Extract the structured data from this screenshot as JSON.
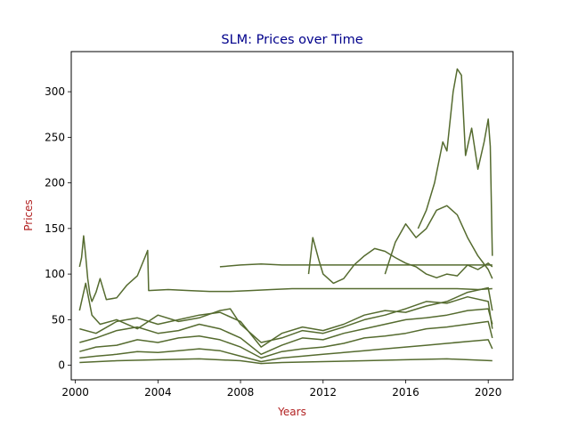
{
  "chart_data": {
    "type": "line",
    "title": "SLM: Prices over Time",
    "xlabel": "Years",
    "ylabel": "Prices",
    "xlim": [
      1999.8,
      2021.2
    ],
    "ylim": [
      -16,
      344
    ],
    "x_ticks": [
      "2000",
      "2004",
      "2008",
      "2012",
      "2016",
      "2020"
    ],
    "y_ticks": [
      "0",
      "50",
      "100",
      "150",
      "200",
      "250",
      "300"
    ],
    "grid": false,
    "legend": "none",
    "colors": {
      "line": "#556b2f",
      "title": "#00008b",
      "axis_label": "#b22222"
    },
    "series": [
      {
        "values": [
          [
            2000.2,
            108
          ],
          [
            2000.3,
            118
          ],
          [
            2000.4,
            142
          ],
          [
            2000.5,
            120
          ],
          [
            2000.6,
            95
          ],
          [
            2000.7,
            78
          ],
          [
            2000.8,
            70
          ],
          [
            2001.0,
            80
          ],
          [
            2001.2,
            95
          ],
          [
            2001.5,
            72
          ],
          [
            2002.0,
            74
          ],
          [
            2002.5,
            88
          ],
          [
            2003.0,
            98
          ],
          [
            2003.4,
            120
          ],
          [
            2003.5,
            126
          ],
          [
            2003.55,
            82
          ],
          [
            2004.5,
            83
          ],
          [
            2005.5,
            82
          ],
          [
            2006.5,
            81
          ],
          [
            2007.5,
            81
          ],
          [
            2008.5,
            82
          ],
          [
            2009.5,
            83
          ],
          [
            2010.5,
            84
          ],
          [
            2011.5,
            84
          ],
          [
            2012.5,
            84
          ],
          [
            2013.5,
            84
          ],
          [
            2014.5,
            84
          ],
          [
            2015.5,
            84
          ],
          [
            2016.5,
            84
          ],
          [
            2017.5,
            84
          ],
          [
            2018.5,
            84
          ],
          [
            2019.5,
            83
          ],
          [
            2020.2,
            84
          ]
        ]
      },
      {
        "values": [
          [
            2007.0,
            108
          ],
          [
            2008.0,
            110
          ],
          [
            2009.0,
            111
          ],
          [
            2010.0,
            110
          ],
          [
            2011.0,
            110
          ],
          [
            2012.0,
            110
          ],
          [
            2013.0,
            110
          ],
          [
            2014.0,
            110
          ],
          [
            2015.0,
            110
          ],
          [
            2016.0,
            110
          ],
          [
            2017.0,
            110
          ],
          [
            2018.0,
            110
          ],
          [
            2019.0,
            110
          ],
          [
            2020.2,
            110
          ]
        ]
      },
      {
        "values": [
          [
            2016.6,
            150
          ],
          [
            2017.0,
            170
          ],
          [
            2017.4,
            200
          ],
          [
            2017.8,
            245
          ],
          [
            2018.0,
            235
          ],
          [
            2018.3,
            300
          ],
          [
            2018.5,
            325
          ],
          [
            2018.7,
            318
          ],
          [
            2018.9,
            230
          ],
          [
            2019.2,
            260
          ],
          [
            2019.5,
            215
          ],
          [
            2019.8,
            245
          ],
          [
            2020.0,
            270
          ],
          [
            2020.1,
            240
          ],
          [
            2020.2,
            120
          ]
        ]
      },
      {
        "values": [
          [
            2015.0,
            100
          ],
          [
            2015.5,
            135
          ],
          [
            2016.0,
            155
          ],
          [
            2016.5,
            140
          ],
          [
            2017.0,
            150
          ],
          [
            2017.5,
            170
          ],
          [
            2018.0,
            175
          ],
          [
            2018.5,
            165
          ],
          [
            2019.0,
            140
          ],
          [
            2019.5,
            120
          ],
          [
            2020.0,
            105
          ],
          [
            2020.2,
            95
          ]
        ]
      },
      {
        "values": [
          [
            2011.3,
            100
          ],
          [
            2011.5,
            140
          ],
          [
            2011.8,
            115
          ],
          [
            2012.0,
            100
          ],
          [
            2012.5,
            90
          ],
          [
            2013.0,
            95
          ],
          [
            2013.5,
            110
          ],
          [
            2014.0,
            120
          ],
          [
            2014.5,
            128
          ],
          [
            2015.0,
            125
          ],
          [
            2015.5,
            118
          ],
          [
            2016.0,
            112
          ],
          [
            2016.5,
            108
          ],
          [
            2017.0,
            100
          ],
          [
            2017.5,
            96
          ],
          [
            2018.0,
            100
          ],
          [
            2018.5,
            98
          ],
          [
            2019.0,
            110
          ],
          [
            2019.5,
            105
          ],
          [
            2020.0,
            112
          ],
          [
            2020.2,
            108
          ]
        ]
      },
      {
        "values": [
          [
            2000.2,
            40
          ],
          [
            2001.0,
            35
          ],
          [
            2002.0,
            48
          ],
          [
            2003.0,
            52
          ],
          [
            2004.0,
            45
          ],
          [
            2005.0,
            50
          ],
          [
            2006.0,
            55
          ],
          [
            2007.0,
            58
          ],
          [
            2008.0,
            48
          ],
          [
            2009.0,
            20
          ],
          [
            2010.0,
            35
          ],
          [
            2011.0,
            42
          ],
          [
            2012.0,
            38
          ],
          [
            2013.0,
            45
          ],
          [
            2014.0,
            55
          ],
          [
            2015.0,
            60
          ],
          [
            2016.0,
            58
          ],
          [
            2017.0,
            65
          ],
          [
            2018.0,
            70
          ],
          [
            2019.0,
            80
          ],
          [
            2020.0,
            85
          ],
          [
            2020.2,
            60
          ]
        ]
      },
      {
        "values": [
          [
            2000.2,
            25
          ],
          [
            2001.0,
            30
          ],
          [
            2002.0,
            38
          ],
          [
            2003.0,
            42
          ],
          [
            2004.0,
            35
          ],
          [
            2005.0,
            38
          ],
          [
            2006.0,
            45
          ],
          [
            2007.0,
            40
          ],
          [
            2008.0,
            30
          ],
          [
            2009.0,
            12
          ],
          [
            2010.0,
            22
          ],
          [
            2011.0,
            30
          ],
          [
            2012.0,
            28
          ],
          [
            2013.0,
            35
          ],
          [
            2014.0,
            40
          ],
          [
            2015.0,
            45
          ],
          [
            2016.0,
            50
          ],
          [
            2017.0,
            52
          ],
          [
            2018.0,
            55
          ],
          [
            2019.0,
            60
          ],
          [
            2020.0,
            62
          ],
          [
            2020.2,
            45
          ]
        ]
      },
      {
        "values": [
          [
            2000.2,
            15
          ],
          [
            2001.0,
            20
          ],
          [
            2002.0,
            22
          ],
          [
            2003.0,
            28
          ],
          [
            2004.0,
            25
          ],
          [
            2005.0,
            30
          ],
          [
            2006.0,
            32
          ],
          [
            2007.0,
            28
          ],
          [
            2008.0,
            20
          ],
          [
            2009.0,
            8
          ],
          [
            2010.0,
            15
          ],
          [
            2011.0,
            18
          ],
          [
            2012.0,
            20
          ],
          [
            2013.0,
            24
          ],
          [
            2014.0,
            30
          ],
          [
            2015.0,
            32
          ],
          [
            2016.0,
            35
          ],
          [
            2017.0,
            40
          ],
          [
            2018.0,
            42
          ],
          [
            2019.0,
            45
          ],
          [
            2020.0,
            48
          ],
          [
            2020.2,
            30
          ]
        ]
      },
      {
        "values": [
          [
            2000.2,
            8
          ],
          [
            2001.0,
            10
          ],
          [
            2002.0,
            12
          ],
          [
            2003.0,
            15
          ],
          [
            2004.0,
            14
          ],
          [
            2005.0,
            16
          ],
          [
            2006.0,
            18
          ],
          [
            2007.0,
            16
          ],
          [
            2008.0,
            10
          ],
          [
            2009.0,
            4
          ],
          [
            2010.0,
            8
          ],
          [
            2011.0,
            10
          ],
          [
            2012.0,
            12
          ],
          [
            2013.0,
            14
          ],
          [
            2014.0,
            16
          ],
          [
            2015.0,
            18
          ],
          [
            2016.0,
            20
          ],
          [
            2017.0,
            22
          ],
          [
            2018.0,
            24
          ],
          [
            2019.0,
            26
          ],
          [
            2020.0,
            28
          ],
          [
            2020.2,
            18
          ]
        ]
      },
      {
        "values": [
          [
            2000.2,
            3
          ],
          [
            2002.0,
            5
          ],
          [
            2004.0,
            6
          ],
          [
            2006.0,
            7
          ],
          [
            2008.0,
            5
          ],
          [
            2009.0,
            2
          ],
          [
            2010.0,
            3
          ],
          [
            2012.0,
            4
          ],
          [
            2014.0,
            5
          ],
          [
            2016.0,
            6
          ],
          [
            2018.0,
            7
          ],
          [
            2020.2,
            5
          ]
        ]
      },
      {
        "values": [
          [
            2000.2,
            60
          ],
          [
            2000.5,
            90
          ],
          [
            2000.8,
            55
          ],
          [
            2001.2,
            45
          ],
          [
            2002.0,
            50
          ],
          [
            2003.0,
            40
          ],
          [
            2004.0,
            55
          ],
          [
            2005.0,
            48
          ],
          [
            2006.0,
            52
          ],
          [
            2007.0,
            60
          ],
          [
            2007.5,
            62
          ],
          [
            2008.0,
            45
          ],
          [
            2009.0,
            25
          ],
          [
            2010.0,
            30
          ],
          [
            2011.0,
            38
          ],
          [
            2012.0,
            35
          ],
          [
            2013.0,
            42
          ],
          [
            2014.0,
            50
          ],
          [
            2015.0,
            55
          ],
          [
            2016.0,
            62
          ],
          [
            2017.0,
            70
          ],
          [
            2018.0,
            68
          ],
          [
            2019.0,
            75
          ],
          [
            2020.0,
            70
          ],
          [
            2020.2,
            40
          ]
        ]
      }
    ]
  }
}
